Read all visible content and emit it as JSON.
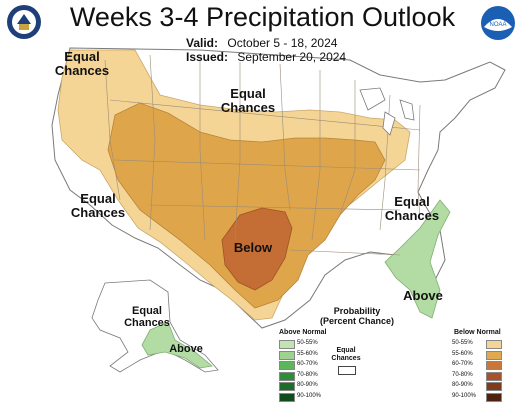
{
  "header": {
    "title": "Weeks 3-4 Precipitation Outlook",
    "valid_label": "Valid:",
    "valid_value": "October 5 - 18, 2024",
    "issued_label": "Issued:",
    "issued_value": "September 20, 2024"
  },
  "logos": {
    "left": {
      "icon": "doc-seal-icon",
      "color": "#1f3f7a"
    },
    "right": {
      "icon": "noaa-logo-icon",
      "text": "NOAA",
      "color": "#1a5fb4"
    }
  },
  "map": {
    "labels": {
      "west": [
        "Equal",
        "Chances"
      ],
      "north": [
        "Equal",
        "Chances"
      ],
      "southwest": [
        "Equal",
        "Chances"
      ],
      "southeast": [
        "Equal",
        "Chances"
      ],
      "below": "Below",
      "above": "Above",
      "alaska": [
        "Equal",
        "Chances"
      ],
      "alaska_above": "Above"
    },
    "colors": {
      "land": "#ffffff",
      "border": "#8a8a8a",
      "below_50": "#f5d596",
      "below_60": "#dfa54a",
      "below_70": "#c46e35",
      "above_50": "#b3dca4",
      "above_60": "#92cc84"
    }
  },
  "legend": {
    "title": [
      "Probability",
      "(Percent Chance)"
    ],
    "above_header": "Above Normal",
    "below_header": "Below Normal",
    "equal": [
      "Equal",
      "Chances"
    ],
    "ranges": [
      "50-55%",
      "55-60%",
      "60-70%",
      "70-80%",
      "80-90%",
      "90-100%"
    ],
    "above_colors": [
      "#c2e4b4",
      "#9fd28e",
      "#5cb65a",
      "#2f8d3a",
      "#1f6b2a",
      "#114a1b"
    ],
    "below_colors": [
      "#f5d596",
      "#e0a84f",
      "#c8763a",
      "#a7522a",
      "#7d3c1c",
      "#4d2310"
    ]
  }
}
